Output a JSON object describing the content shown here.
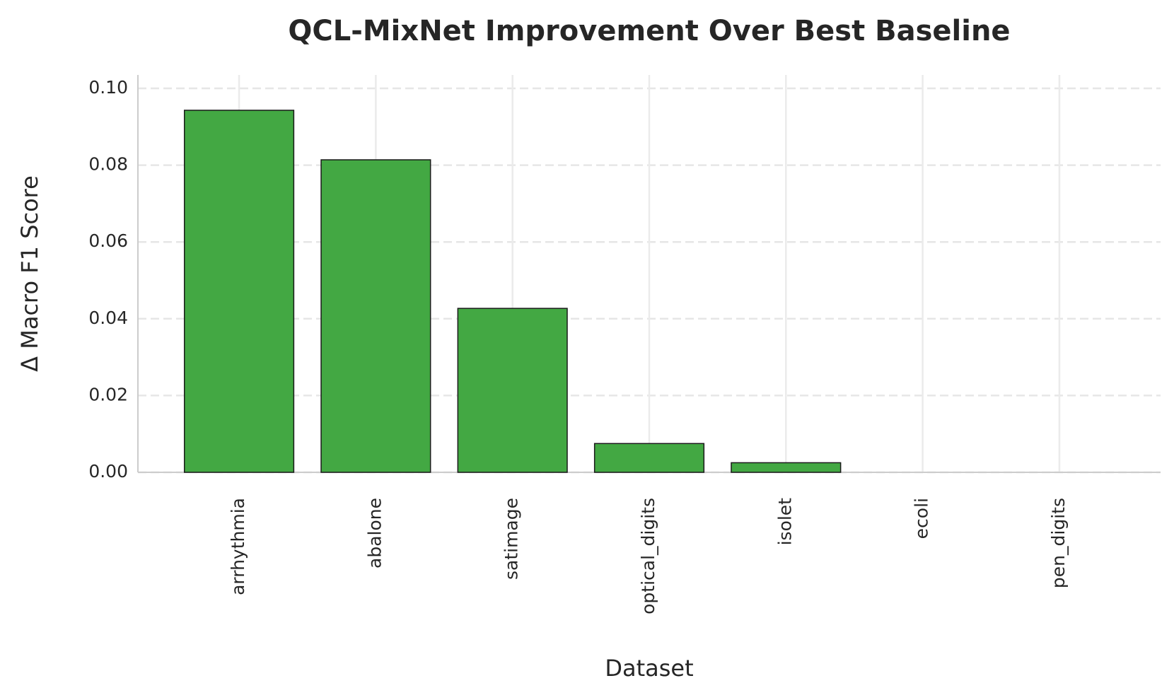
{
  "chart_data": {
    "type": "bar",
    "title": "QCL-MixNet Improvement Over Best Baseline",
    "x_label": "Dataset",
    "y_label": "Δ Macro F1 Score",
    "categories": [
      "arrhythmia",
      "abalone",
      "satimage",
      "optical_digits",
      "isolet",
      "ecoli",
      "pen_digits"
    ],
    "values": [
      0.0943,
      0.0814,
      0.0427,
      0.0075,
      0.0025,
      0,
      0
    ],
    "color": "#43a843",
    "ylim": [
      0,
      0.1035
    ],
    "yticks": [
      {
        "value": 0,
        "label": "0.00"
      },
      {
        "value": 0.02,
        "label": "0.02"
      },
      {
        "value": 0.04,
        "label": "0.04"
      },
      {
        "value": 0.06,
        "label": "0.06"
      },
      {
        "value": 0.08,
        "label": "0.08"
      },
      {
        "value": 0.1,
        "label": "0.10"
      }
    ],
    "grid": true
  }
}
